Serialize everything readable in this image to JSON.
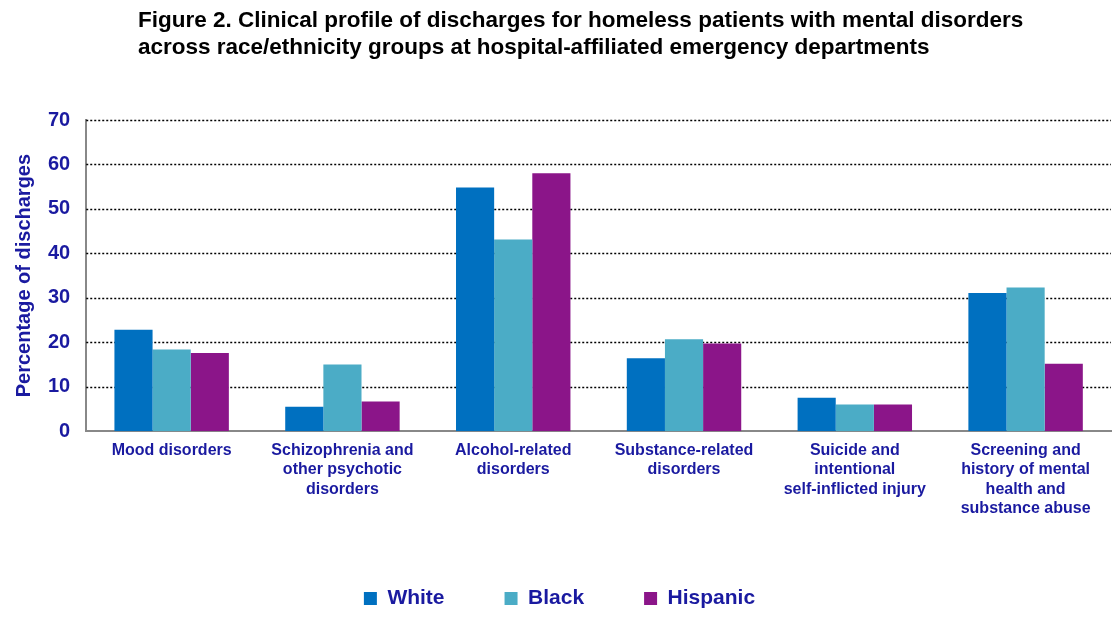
{
  "chart_data": {
    "type": "bar",
    "title": "Figure 2. Clinical profile of discharges for homeless patients with mental disorders across race/ethnicity groups at hospital-affiliated emergency departments",
    "ylabel": "Percentage of discharges",
    "categories": [
      "Mood disorders",
      "Schizophrenia and other psychotic disorders",
      "Alcohol-related disorders",
      "Substance-related disorders",
      "Suicide and intentional self-inflicted injury",
      "Screening and history of mental health and substance abuse"
    ],
    "series": [
      {
        "name": "White",
        "color": "#0070c0",
        "values": [
          22.8,
          5.5,
          54.8,
          16.4,
          7.5,
          31.1
        ]
      },
      {
        "name": "Black",
        "color": "#4bacc6",
        "values": [
          18.4,
          15.0,
          43.1,
          20.7,
          6.0,
          32.3
        ]
      },
      {
        "name": "Hispanic",
        "color": "#8b1589",
        "values": [
          17.6,
          6.7,
          58.0,
          19.7,
          6.0,
          15.2
        ]
      }
    ],
    "ylim": [
      0,
      70
    ],
    "yticks": [
      0,
      10,
      20,
      30,
      40,
      50,
      60,
      70
    ],
    "grid": "y",
    "legend": "bottom"
  }
}
